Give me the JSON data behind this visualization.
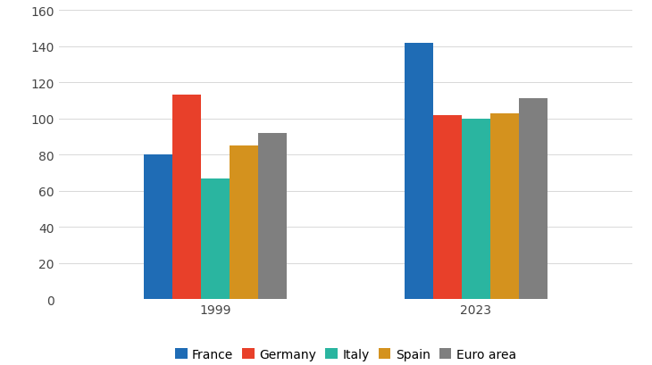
{
  "years": [
    "1999",
    "2023"
  ],
  "countries": [
    "France",
    "Germany",
    "Italy",
    "Spain",
    "Euro area"
  ],
  "values": {
    "1999": [
      80,
      113,
      67,
      85,
      92
    ],
    "2023": [
      142,
      102,
      100,
      103,
      111
    ]
  },
  "colors": [
    "#1f6cb5",
    "#e8402a",
    "#2ab5a0",
    "#d4921e",
    "#7f7f7f"
  ],
  "ylim": [
    0,
    160
  ],
  "yticks": [
    0,
    20,
    40,
    60,
    80,
    100,
    120,
    140,
    160
  ],
  "bar_width": 0.055,
  "group_centers": [
    0.35,
    0.85
  ],
  "xlim": [
    0.05,
    1.15
  ],
  "legend_labels": [
    "France",
    "Germany",
    "Italy",
    "Spain",
    "Euro area"
  ],
  "background_color": "#ffffff",
  "tick_fontsize": 10,
  "legend_fontsize": 10
}
